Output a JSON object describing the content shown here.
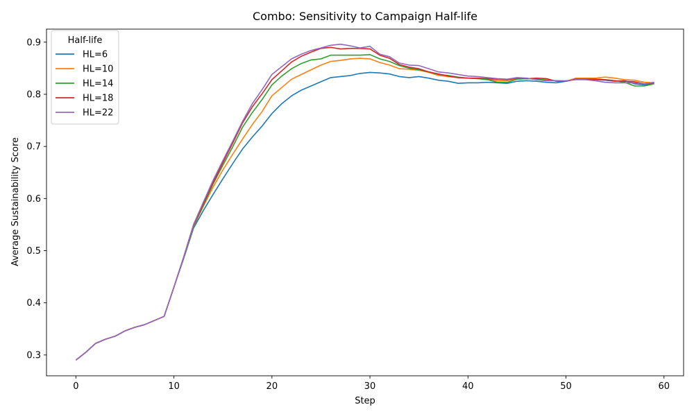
{
  "chart_data": {
    "type": "line",
    "title": "Combo: Sensitivity to Campaign Half-life",
    "xlabel": "Step",
    "ylabel": "Average Sustainability Score",
    "xlim": [
      -3,
      62
    ],
    "ylim": [
      0.26,
      0.925
    ],
    "xticks": [
      0,
      10,
      20,
      30,
      40,
      50,
      60
    ],
    "yticks": [
      0.3,
      0.4,
      0.5,
      0.6,
      0.7,
      0.8,
      0.9
    ],
    "xtick_labels": [
      "0",
      "10",
      "20",
      "30",
      "40",
      "50",
      "60"
    ],
    "ytick_labels": [
      "0.3",
      "0.4",
      "0.5",
      "0.6",
      "0.7",
      "0.8",
      "0.9"
    ],
    "grid": false,
    "legend": {
      "title": "Half-life",
      "placement": "top-left"
    },
    "x": [
      0,
      1,
      2,
      3,
      4,
      5,
      6,
      7,
      8,
      9,
      10,
      11,
      12,
      13,
      14,
      15,
      16,
      17,
      18,
      19,
      20,
      21,
      22,
      23,
      24,
      25,
      26,
      27,
      28,
      29,
      30,
      31,
      32,
      33,
      34,
      35,
      36,
      37,
      38,
      39,
      40,
      41,
      42,
      43,
      44,
      45,
      46,
      47,
      48,
      49,
      50,
      51,
      52,
      53,
      54,
      55,
      56,
      57,
      58,
      59
    ],
    "series": [
      {
        "name": "HL=6",
        "color": "#1f77b4",
        "values": [
          0.29,
          0.305,
          0.322,
          0.33,
          0.336,
          0.346,
          0.353,
          0.358,
          0.366,
          0.374,
          0.43,
          0.485,
          0.543,
          0.577,
          0.608,
          0.638,
          0.667,
          0.695,
          0.718,
          0.739,
          0.763,
          0.782,
          0.797,
          0.808,
          0.816,
          0.824,
          0.832,
          0.834,
          0.836,
          0.84,
          0.842,
          0.841,
          0.839,
          0.834,
          0.832,
          0.834,
          0.831,
          0.827,
          0.825,
          0.821,
          0.822,
          0.822,
          0.823,
          0.822,
          0.821,
          0.825,
          0.826,
          0.825,
          0.823,
          0.822,
          0.825,
          0.829,
          0.829,
          0.828,
          0.827,
          0.825,
          0.826,
          0.82,
          0.818,
          0.821
        ]
      },
      {
        "name": "HL=10",
        "color": "#ff7f0e",
        "values": [
          0.29,
          0.305,
          0.322,
          0.33,
          0.336,
          0.346,
          0.353,
          0.358,
          0.366,
          0.374,
          0.43,
          0.487,
          0.546,
          0.585,
          0.622,
          0.655,
          0.685,
          0.714,
          0.742,
          0.767,
          0.797,
          0.813,
          0.829,
          0.838,
          0.847,
          0.856,
          0.863,
          0.865,
          0.868,
          0.869,
          0.868,
          0.861,
          0.856,
          0.849,
          0.848,
          0.846,
          0.842,
          0.836,
          0.834,
          0.832,
          0.831,
          0.83,
          0.829,
          0.826,
          0.826,
          0.83,
          0.83,
          0.829,
          0.828,
          0.826,
          0.825,
          0.831,
          0.831,
          0.831,
          0.833,
          0.831,
          0.828,
          0.827,
          0.823,
          0.822
        ]
      },
      {
        "name": "HL=14",
        "color": "#2ca02c",
        "values": [
          0.29,
          0.305,
          0.322,
          0.33,
          0.336,
          0.346,
          0.353,
          0.358,
          0.366,
          0.374,
          0.43,
          0.487,
          0.547,
          0.587,
          0.628,
          0.664,
          0.699,
          0.737,
          0.765,
          0.79,
          0.818,
          0.835,
          0.849,
          0.859,
          0.866,
          0.868,
          0.875,
          0.875,
          0.875,
          0.875,
          0.876,
          0.868,
          0.863,
          0.855,
          0.85,
          0.847,
          0.843,
          0.838,
          0.836,
          0.833,
          0.831,
          0.83,
          0.828,
          0.823,
          0.823,
          0.829,
          0.83,
          0.829,
          0.827,
          0.826,
          0.825,
          0.829,
          0.829,
          0.829,
          0.828,
          0.826,
          0.823,
          0.816,
          0.816,
          0.82
        ]
      },
      {
        "name": "HL=18",
        "color": "#d62728",
        "values": [
          0.29,
          0.305,
          0.322,
          0.33,
          0.336,
          0.346,
          0.353,
          0.358,
          0.366,
          0.374,
          0.43,
          0.488,
          0.549,
          0.59,
          0.631,
          0.669,
          0.706,
          0.745,
          0.776,
          0.801,
          0.828,
          0.845,
          0.862,
          0.873,
          0.881,
          0.888,
          0.89,
          0.887,
          0.888,
          0.888,
          0.887,
          0.875,
          0.869,
          0.857,
          0.852,
          0.849,
          0.843,
          0.839,
          0.835,
          0.832,
          0.831,
          0.831,
          0.83,
          0.829,
          0.828,
          0.831,
          0.83,
          0.831,
          0.83,
          0.825,
          0.825,
          0.829,
          0.829,
          0.829,
          0.828,
          0.826,
          0.825,
          0.824,
          0.82,
          0.822
        ]
      },
      {
        "name": "HL=22",
        "color": "#9467bd",
        "values": [
          0.29,
          0.305,
          0.322,
          0.33,
          0.336,
          0.346,
          0.353,
          0.358,
          0.366,
          0.374,
          0.43,
          0.488,
          0.55,
          0.593,
          0.635,
          0.673,
          0.71,
          0.748,
          0.782,
          0.809,
          0.838,
          0.853,
          0.868,
          0.877,
          0.884,
          0.889,
          0.894,
          0.896,
          0.893,
          0.889,
          0.892,
          0.877,
          0.872,
          0.86,
          0.856,
          0.855,
          0.849,
          0.843,
          0.841,
          0.838,
          0.835,
          0.834,
          0.832,
          0.83,
          0.829,
          0.832,
          0.831,
          0.828,
          0.826,
          0.826,
          0.826,
          0.828,
          0.828,
          0.826,
          0.823,
          0.822,
          0.822,
          0.822,
          0.82,
          0.823
        ]
      }
    ]
  }
}
